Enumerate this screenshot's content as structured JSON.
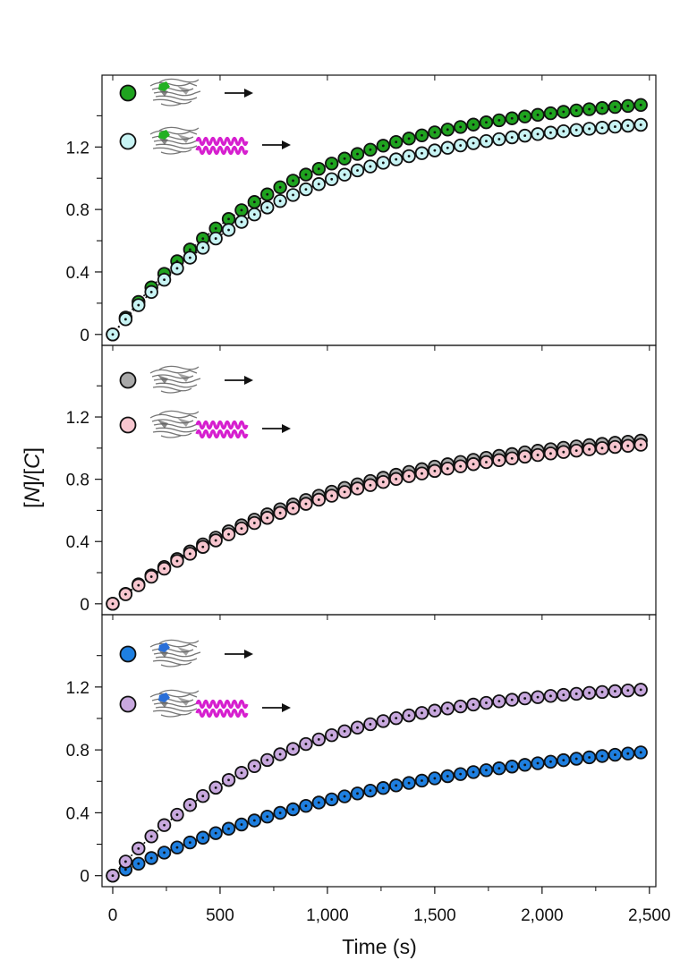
{
  "figure": {
    "ylabel_prefix": "[",
    "ylabel_N": "N",
    "ylabel_mid": "]/[",
    "ylabel_C": "C",
    "ylabel_suffix": "]",
    "xlabel": "Time (s)"
  },
  "chart_data": [
    {
      "type": "scatter",
      "title": "",
      "xlabel": "Time (s)",
      "ylabel": "[N]/[C]",
      "xlim": [
        -50,
        2530
      ],
      "ylim": [
        -0.07,
        1.66
      ],
      "x_ticks": [
        0,
        500,
        1000,
        1500,
        2000,
        2500
      ],
      "x_tick_labels": [
        "0",
        "500",
        "1,000",
        "1,500",
        "2,000",
        "2,500"
      ],
      "y_ticks": [
        0,
        0.4,
        0.8,
        1.2
      ],
      "y_tick_labels": [
        "0",
        "0.4",
        "0.8",
        "1.2"
      ],
      "y_minor_ticks": [
        0.2,
        0.6,
        1.0,
        1.4
      ],
      "legend_position": "top-left",
      "series": [
        {
          "name": "domain only (green active site)",
          "color": "#1fa31f",
          "icon": "protein-domain-icon",
          "helix": false,
          "accent": "#22b022",
          "plateau": 1.55,
          "k": 0.0012
        },
        {
          "name": "domain + helical extension (green active site)",
          "color": "#c8f4f4",
          "icon": "protein-domain-helix-icon",
          "helix": true,
          "accent": "#22b022",
          "plateau": 1.42,
          "k": 0.00118
        }
      ]
    },
    {
      "type": "scatter",
      "title": "",
      "xlabel": "Time (s)",
      "ylabel": "[N]/[C]",
      "xlim": [
        -50,
        2530
      ],
      "ylim": [
        -0.07,
        1.66
      ],
      "x_ticks": [
        0,
        500,
        1000,
        1500,
        2000,
        2500
      ],
      "x_tick_labels": [
        "0",
        "500",
        "1,000",
        "1,500",
        "2,000",
        "2,500"
      ],
      "y_ticks": [
        0,
        0.4,
        0.8,
        1.2
      ],
      "y_tick_labels": [
        "0",
        "0.4",
        "0.8",
        "1.2"
      ],
      "y_minor_ticks": [
        0.2,
        0.6,
        1.0,
        1.4
      ],
      "legend_position": "top-left",
      "series": [
        {
          "name": "domain only",
          "color": "#a9a9a9",
          "icon": "protein-domain-icon",
          "helix": false,
          "accent": "",
          "plateau": 1.16,
          "k": 0.00095
        },
        {
          "name": "domain + helical extension",
          "color": "#f7c6cf",
          "icon": "protein-domain-helix-icon",
          "helix": true,
          "accent": "",
          "plateau": 1.14,
          "k": 0.00092
        }
      ]
    },
    {
      "type": "scatter",
      "title": "",
      "xlabel": "Time (s)",
      "ylabel": "[N]/[C]",
      "xlim": [
        -50,
        2530
      ],
      "ylim": [
        -0.07,
        1.66
      ],
      "x_ticks": [
        0,
        500,
        1000,
        1500,
        2000,
        2500
      ],
      "x_tick_labels": [
        "0",
        "500",
        "1,000",
        "1,500",
        "2,000",
        "2,500"
      ],
      "y_ticks": [
        0,
        0.4,
        0.8,
        1.2
      ],
      "y_tick_labels": [
        "0",
        "0.4",
        "0.8",
        "1.2"
      ],
      "y_minor_ticks": [
        0.2,
        0.6,
        1.0,
        1.4
      ],
      "legend_position": "top-left",
      "series": [
        {
          "name": "domain only (blue active site)",
          "color": "#1e7fe0",
          "icon": "protein-domain-icon",
          "helix": false,
          "accent": "#2a6fd8",
          "plateau": 0.96,
          "k": 0.00069
        },
        {
          "name": "domain + helical extension (blue active site)",
          "color": "#c8a8de",
          "icon": "protein-domain-helix-icon",
          "helix": true,
          "accent": "#2a6fd8",
          "plateau": 1.24,
          "k": 0.00125
        }
      ]
    }
  ]
}
